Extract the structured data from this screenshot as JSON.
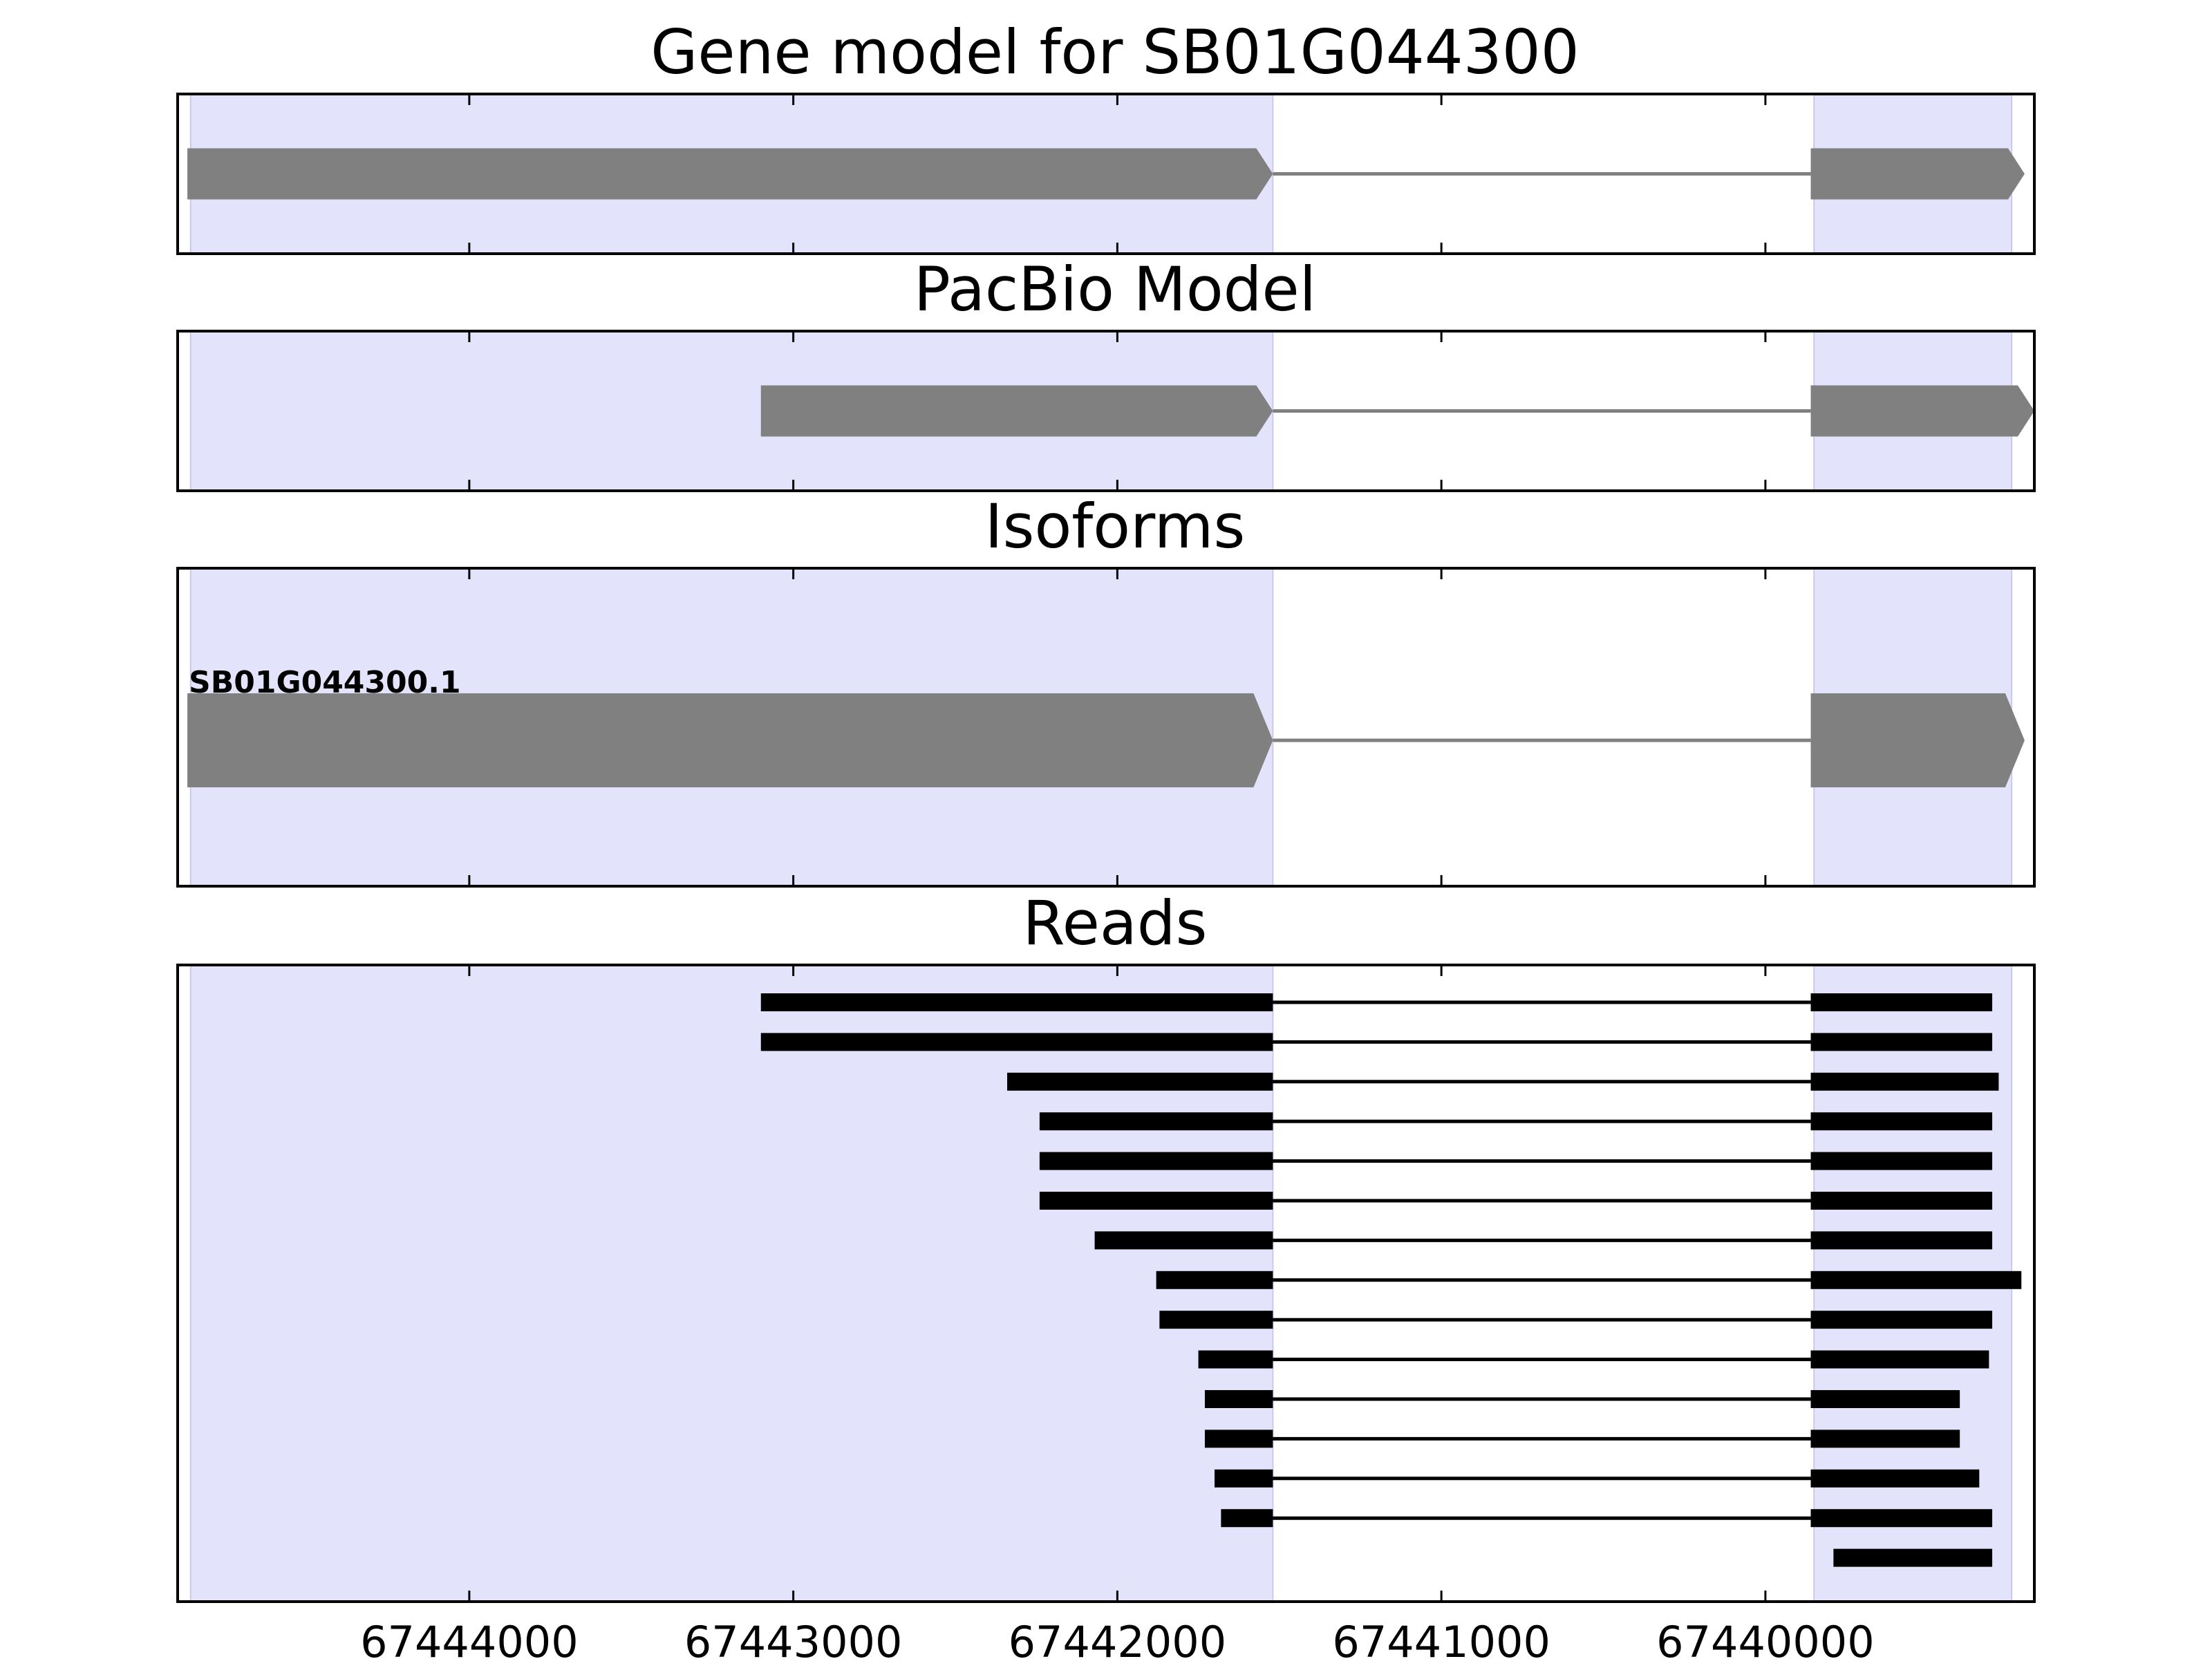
{
  "chart_data": {
    "type": "gene-track",
    "x_reversed": true,
    "xlim": [
      67444900,
      67439170
    ],
    "xticks": [
      67444000,
      67443000,
      67442000,
      67441000,
      67440000
    ],
    "xtick_labels": [
      "67444000",
      "67443000",
      "67442000",
      "67441000",
      "67440000"
    ],
    "exon_highlight_color": "#e3e3fc",
    "feature_color": "#808080",
    "read_color": "#000000",
    "exon_regions": [
      [
        67444860,
        67441520
      ],
      [
        67439850,
        67439240
      ]
    ],
    "panels": [
      {
        "name": "gene-model",
        "title": "Gene model for SB01G044300",
        "features": [
          {
            "start": 67444870,
            "end": 67441520,
            "kind": "exon"
          },
          {
            "start": 67441520,
            "end": 67439860,
            "kind": "intron"
          },
          {
            "start": 67439860,
            "end": 67439200,
            "kind": "exon"
          }
        ]
      },
      {
        "name": "pacbio-model",
        "title": "PacBio Model",
        "features": [
          {
            "start": 67443100,
            "end": 67441520,
            "kind": "exon"
          },
          {
            "start": 67441520,
            "end": 67439860,
            "kind": "intron"
          },
          {
            "start": 67439860,
            "end": 67439170,
            "kind": "exon"
          }
        ]
      },
      {
        "name": "isoforms",
        "title": "Isoforms",
        "isoform_label": "SB01G044300.1",
        "features": [
          {
            "start": 67444870,
            "end": 67441520,
            "kind": "exon"
          },
          {
            "start": 67441520,
            "end": 67439860,
            "kind": "intron"
          },
          {
            "start": 67439860,
            "end": 67439200,
            "kind": "exon"
          }
        ]
      },
      {
        "name": "reads",
        "title": "Reads",
        "intron": [
          67441520,
          67439860
        ],
        "reads": [
          {
            "start": 67443100,
            "end": 67439300
          },
          {
            "start": 67443100,
            "end": 67439300
          },
          {
            "start": 67442340,
            "end": 67439280
          },
          {
            "start": 67442240,
            "end": 67439300
          },
          {
            "start": 67442240,
            "end": 67439300
          },
          {
            "start": 67442240,
            "end": 67439300
          },
          {
            "start": 67442070,
            "end": 67439300
          },
          {
            "start": 67441880,
            "end": 67439210
          },
          {
            "start": 67441870,
            "end": 67439300
          },
          {
            "start": 67441750,
            "end": 67439310
          },
          {
            "start": 67441730,
            "end": 67439400
          },
          {
            "start": 67441730,
            "end": 67439400
          },
          {
            "start": 67441700,
            "end": 67439340
          },
          {
            "start": 67441680,
            "end": 67439300
          },
          {
            "start": 67439790,
            "end": 67439300,
            "intron": false
          }
        ]
      }
    ]
  }
}
